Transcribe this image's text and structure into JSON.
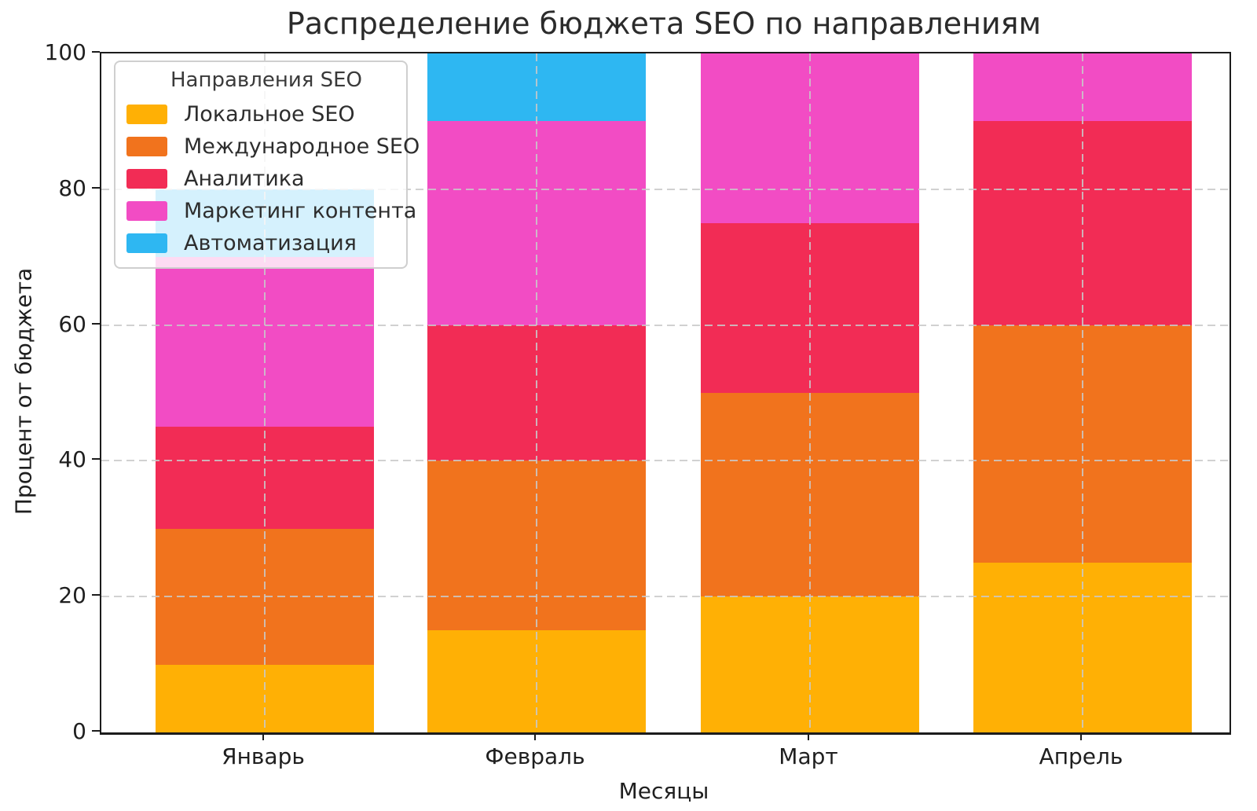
{
  "chart_data": {
    "type": "bar",
    "stacked": true,
    "title": "Распределение бюджета SEO по направлениям",
    "xlabel": "Месяцы",
    "ylabel": "Процент от бюджета",
    "legend_title": "Направления SEO",
    "legend_position": "upper left",
    "grid": "dashed light-gray, horizontal at y-ticks and vertical at category centers, drawn over bars",
    "categories": [
      "Январь",
      "Февраль",
      "Март",
      "Апрель"
    ],
    "y_ticks": [
      0,
      20,
      40,
      60,
      80,
      100
    ],
    "ylim": [
      0,
      100
    ],
    "series": [
      {
        "name": "Локальное SEO",
        "color": "#FFB005",
        "values": [
          10,
          15,
          20,
          25
        ]
      },
      {
        "name": "Международное SEO",
        "color": "#F1731D",
        "values": [
          20,
          25,
          30,
          35
        ]
      },
      {
        "name": "Аналитика",
        "color": "#F22C55",
        "values": [
          15,
          20,
          25,
          30
        ]
      },
      {
        "name": "Маркетинг контента",
        "color": "#F24CC4",
        "values": [
          25,
          30,
          25,
          10
        ]
      },
      {
        "name": "Автоматизация",
        "color": "#2EB7F2",
        "values": [
          10,
          10,
          0,
          0
        ]
      }
    ],
    "column_totals": [
      80,
      100,
      100,
      100
    ]
  }
}
